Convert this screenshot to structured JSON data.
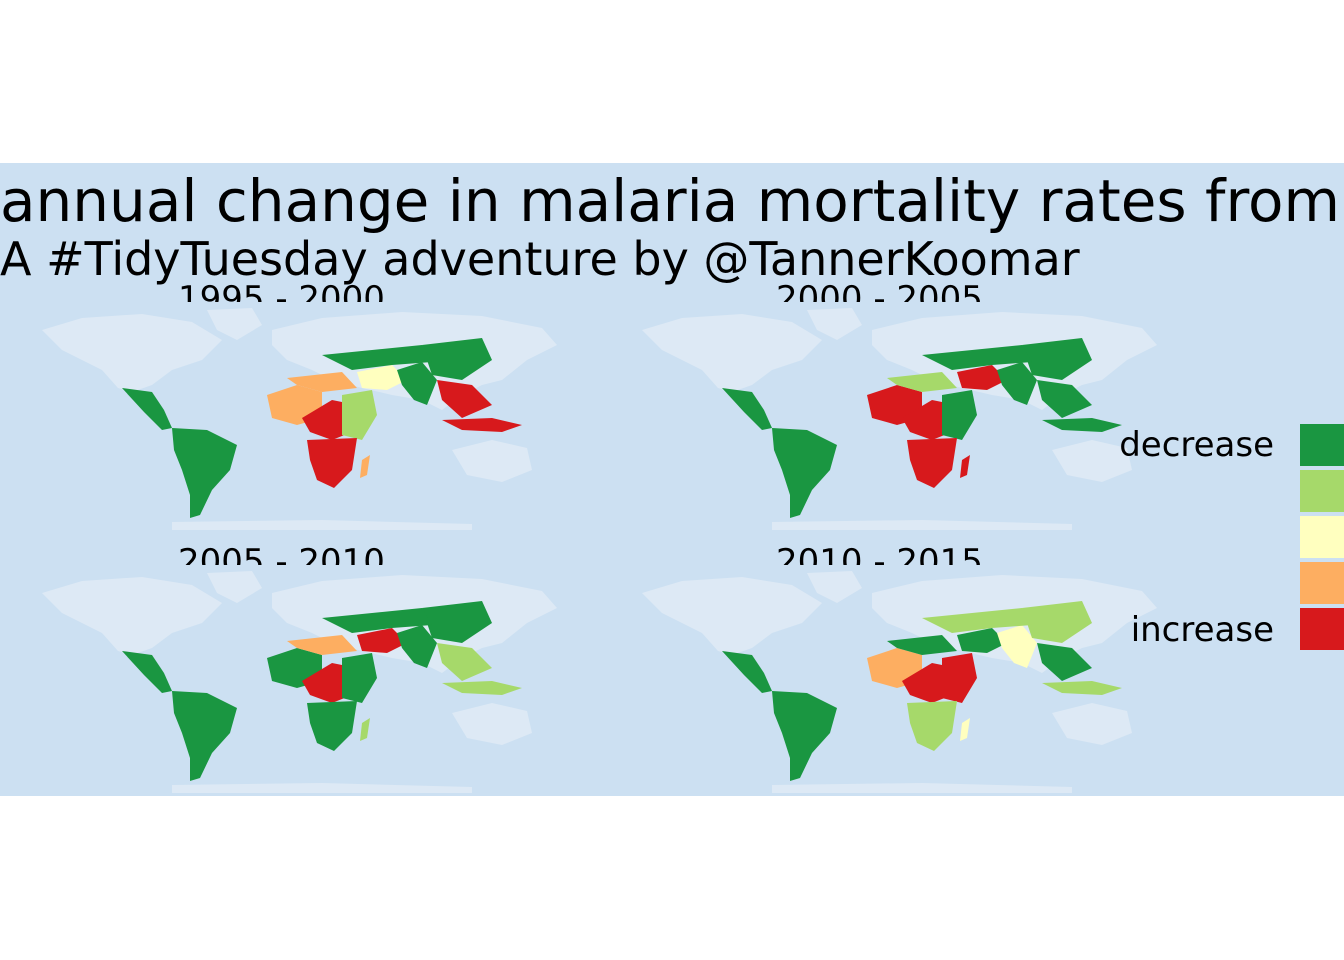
{
  "title": "annual change in malaria mortality rates from",
  "subtitle": "A #TidyTuesday adventure by @TannerKoomar",
  "panels": [
    {
      "label": "1995 - 2000"
    },
    {
      "label": "2000 - 2005"
    },
    {
      "label": "2005 - 2010"
    },
    {
      "label": "2010 - 2015"
    }
  ],
  "legend": {
    "top_label": "decrease",
    "bottom_label": "increase",
    "colors": [
      "#1a9641",
      "#a6d96a",
      "#ffffbf",
      "#fdae61",
      "#d7191c"
    ]
  },
  "colors": {
    "background": "#cce0f2",
    "land_no_data": "#dde9f5"
  }
}
